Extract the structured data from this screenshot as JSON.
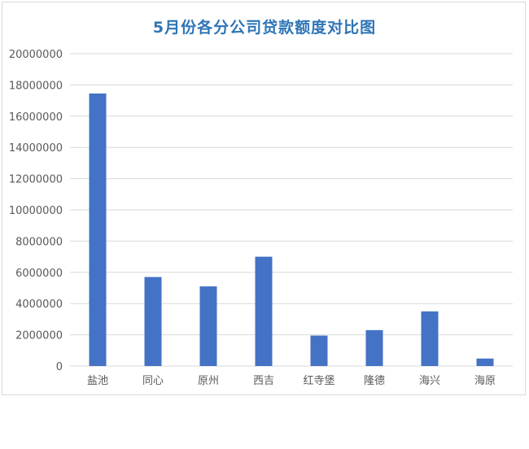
{
  "chart_data": {
    "type": "bar",
    "title": "5月份各分公司贷款额度对比图",
    "categories": [
      "盐池",
      "同心",
      "原州",
      "西吉",
      "红寺堡",
      "隆德",
      "海兴",
      "海原"
    ],
    "values": [
      17450000,
      5700000,
      5100000,
      7000000,
      1950000,
      2300000,
      3500000,
      480000
    ],
    "ylim": [
      0,
      20000000
    ],
    "yticks": [
      0,
      2000000,
      4000000,
      6000000,
      8000000,
      10000000,
      12000000,
      14000000,
      16000000,
      18000000,
      20000000
    ],
    "grid": true,
    "legend": "none",
    "xlabel": "",
    "ylabel": ""
  },
  "colors": {
    "bar": "#4472c4",
    "title": "#2e75b6",
    "grid": "#d9d9d9",
    "axis_text": "#595959"
  }
}
